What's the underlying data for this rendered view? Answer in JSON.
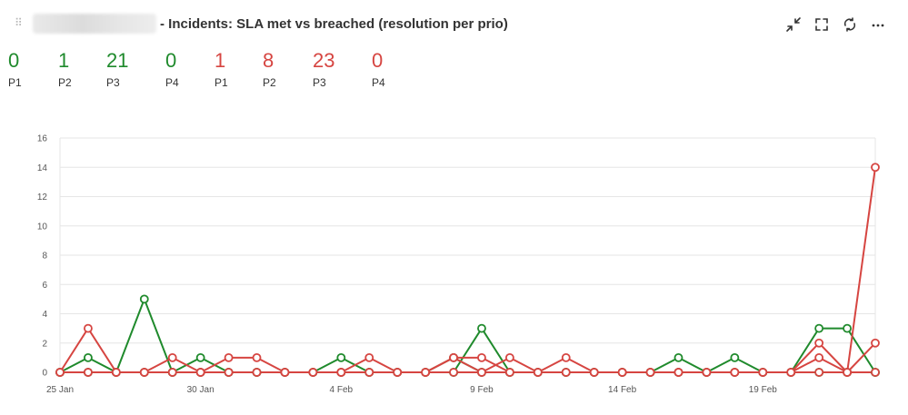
{
  "header": {
    "title": "- Incidents: SLA met vs breached (resolution per prio)",
    "tools": [
      {
        "name": "collapse-icon",
        "glyph": "collapse"
      },
      {
        "name": "fullscreen-icon",
        "glyph": "fullscreen"
      },
      {
        "name": "refresh-icon",
        "glyph": "refresh"
      },
      {
        "name": "more-icon",
        "glyph": "more"
      }
    ]
  },
  "colors": {
    "met": "#1f8a2c",
    "breached": "#d64541",
    "grid": "#e6e6e6",
    "axis": "#d6d6d6"
  },
  "kpis": [
    {
      "value": "0",
      "label": "P1",
      "status": "met"
    },
    {
      "value": "1",
      "label": "P2",
      "status": "met"
    },
    {
      "value": "21",
      "label": "P3",
      "status": "met"
    },
    {
      "value": "0",
      "label": "P4",
      "status": "met"
    },
    {
      "value": "1",
      "label": "P1",
      "status": "breached"
    },
    {
      "value": "8",
      "label": "P2",
      "status": "breached"
    },
    {
      "value": "23",
      "label": "P3",
      "status": "breached"
    },
    {
      "value": "0",
      "label": "P4",
      "status": "breached"
    }
  ],
  "chart_data": {
    "type": "line",
    "ylim": [
      0,
      16
    ],
    "yticks": [
      "0",
      "2",
      "4",
      "6",
      "8",
      "10",
      "12",
      "14",
      "16"
    ],
    "x_count": 30,
    "xticks": [
      {
        "index": 0,
        "label": "25 Jan"
      },
      {
        "index": 5,
        "label": "30 Jan"
      },
      {
        "index": 10,
        "label": "4 Feb"
      },
      {
        "index": 15,
        "label": "9 Feb"
      },
      {
        "index": 20,
        "label": "14 Feb"
      },
      {
        "index": 25,
        "label": "19 Feb"
      }
    ],
    "grid": true,
    "series": [
      {
        "color": "met",
        "values": [
          0,
          1,
          0,
          5,
          0,
          1,
          0,
          0,
          0,
          0,
          1,
          0,
          0,
          0,
          0,
          3,
          0,
          0,
          0,
          0,
          0,
          0,
          1,
          0,
          1,
          0,
          0,
          3,
          3,
          0
        ]
      },
      {
        "color": "met",
        "values": [
          0,
          0,
          0,
          0,
          0,
          0,
          0,
          0,
          0,
          0,
          0,
          0,
          0,
          0,
          1,
          0,
          0,
          0,
          0,
          0,
          0,
          0,
          0,
          0,
          0,
          0,
          0,
          0,
          0,
          0
        ]
      },
      {
        "color": "met",
        "values": [
          0,
          0,
          0,
          0,
          0,
          0,
          0,
          0,
          0,
          0,
          0,
          0,
          0,
          0,
          0,
          0,
          0,
          0,
          0,
          0,
          0,
          0,
          0,
          0,
          0,
          0,
          0,
          0,
          0,
          0
        ]
      },
      {
        "color": "breached",
        "values": [
          0,
          3,
          0,
          0,
          1,
          0,
          1,
          1,
          0,
          0,
          0,
          1,
          0,
          0,
          1,
          0,
          1,
          0,
          1,
          0,
          0,
          0,
          0,
          0,
          0,
          0,
          0,
          2,
          0,
          14
        ]
      },
      {
        "color": "breached",
        "values": [
          0,
          0,
          0,
          0,
          0,
          0,
          0,
          0,
          0,
          0,
          0,
          0,
          0,
          0,
          1,
          1,
          0,
          0,
          0,
          0,
          0,
          0,
          0,
          0,
          0,
          0,
          0,
          1,
          0,
          2
        ]
      },
      {
        "color": "breached",
        "values": [
          0,
          0,
          0,
          0,
          0,
          0,
          0,
          0,
          0,
          0,
          0,
          0,
          0,
          0,
          0,
          0,
          0,
          0,
          0,
          0,
          0,
          0,
          0,
          0,
          0,
          0,
          0,
          0,
          0,
          0
        ]
      }
    ]
  }
}
